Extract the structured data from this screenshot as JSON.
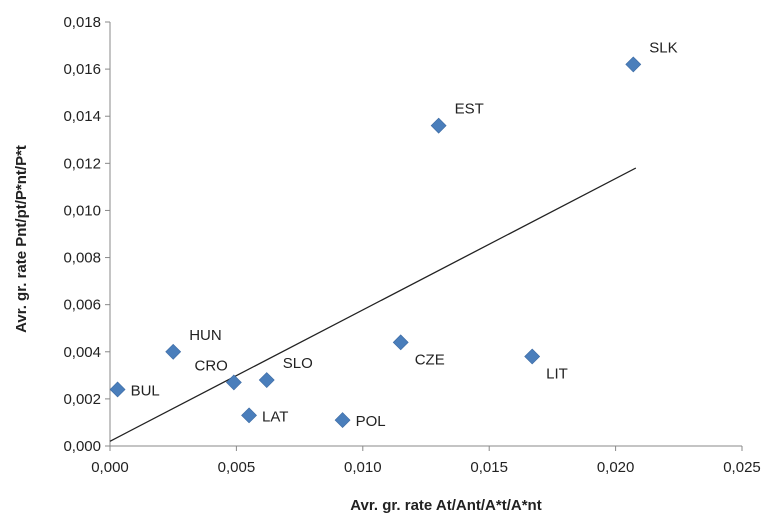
{
  "chart_data": {
    "type": "scatter",
    "title": "",
    "xlabel": "Avr. gr. rate At/Ant/A*t/A*nt",
    "ylabel": "Avr. gr. rate Pnt/pt/P*nt/P*t",
    "xlim": [
      0,
      0.025
    ],
    "ylim": [
      0,
      0.018
    ],
    "x_ticks": [
      {
        "value": 0.0,
        "label": "0,000"
      },
      {
        "value": 0.005,
        "label": "0,005"
      },
      {
        "value": 0.01,
        "label": "0,010"
      },
      {
        "value": 0.015,
        "label": "0,015"
      },
      {
        "value": 0.02,
        "label": "0,020"
      },
      {
        "value": 0.025,
        "label": "0,025"
      }
    ],
    "y_ticks": [
      {
        "value": 0.0,
        "label": "0,000"
      },
      {
        "value": 0.002,
        "label": "0,002"
      },
      {
        "value": 0.004,
        "label": "0,004"
      },
      {
        "value": 0.006,
        "label": "0,006"
      },
      {
        "value": 0.008,
        "label": "0,008"
      },
      {
        "value": 0.01,
        "label": "0,010"
      },
      {
        "value": 0.012,
        "label": "0,012"
      },
      {
        "value": 0.014,
        "label": "0,014"
      },
      {
        "value": 0.016,
        "label": "0,016"
      },
      {
        "value": 0.018,
        "label": "0,018"
      }
    ],
    "grid": false,
    "legend": "none",
    "marker": "diamond",
    "marker_color": "#4a7ebb",
    "points": [
      {
        "label": "BUL",
        "x": 0.0003,
        "y": 0.0024,
        "label_pos": "right"
      },
      {
        "label": "HUN",
        "x": 0.0025,
        "y": 0.004,
        "label_pos": "above-right"
      },
      {
        "label": "CRO",
        "x": 0.0049,
        "y": 0.0027,
        "label_pos": "above-left"
      },
      {
        "label": "SLO",
        "x": 0.0062,
        "y": 0.0028,
        "label_pos": "above-right"
      },
      {
        "label": "LAT",
        "x": 0.0055,
        "y": 0.0013,
        "label_pos": "right"
      },
      {
        "label": "POL",
        "x": 0.0092,
        "y": 0.0011,
        "label_pos": "right"
      },
      {
        "label": "CZE",
        "x": 0.0115,
        "y": 0.0044,
        "label_pos": "below-right"
      },
      {
        "label": "LIT",
        "x": 0.0167,
        "y": 0.0038,
        "label_pos": "below-right"
      },
      {
        "label": "EST",
        "x": 0.013,
        "y": 0.0136,
        "label_pos": "above-right"
      },
      {
        "label": "SLK",
        "x": 0.0207,
        "y": 0.0162,
        "label_pos": "above-right"
      }
    ],
    "trendline": {
      "type": "linear",
      "color": "#222222",
      "x_start": 0.0,
      "y_start": 0.0002,
      "x_end": 0.0208,
      "y_end": 0.0118
    }
  }
}
